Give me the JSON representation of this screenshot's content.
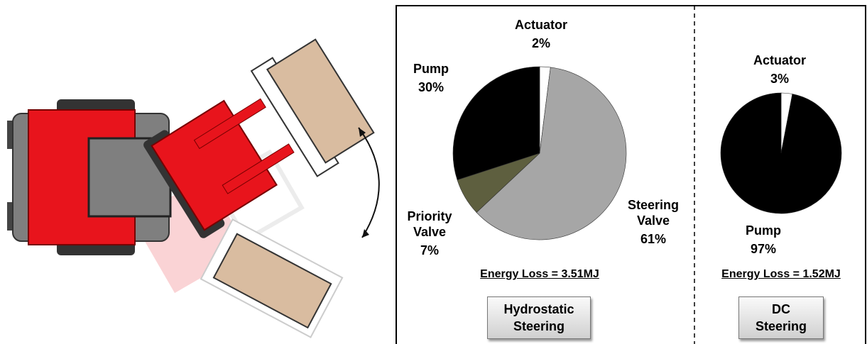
{
  "chart_data": [
    {
      "type": "pie",
      "categories": [
        "Actuator",
        "Steering Valve",
        "Priority Valve",
        "Pump"
      ],
      "values": [
        2,
        61,
        7,
        30
      ],
      "value_labels": [
        "2%",
        "61%",
        "7%",
        "30%"
      ],
      "colors": [
        "#ffffff",
        "#a6a6a6",
        "#5e5f3f",
        "#000000"
      ],
      "annotation": "Energy Loss = 3.51MJ",
      "label": "Hydrostatic Steering"
    },
    {
      "type": "pie",
      "categories": [
        "Actuator",
        "Pump"
      ],
      "values": [
        3,
        97
      ],
      "value_labels": [
        "3%",
        "97%"
      ],
      "colors": [
        "#ffffff",
        "#000000"
      ],
      "annotation": "Energy Loss = 1.52MJ",
      "label": "DC Steering"
    }
  ]
}
